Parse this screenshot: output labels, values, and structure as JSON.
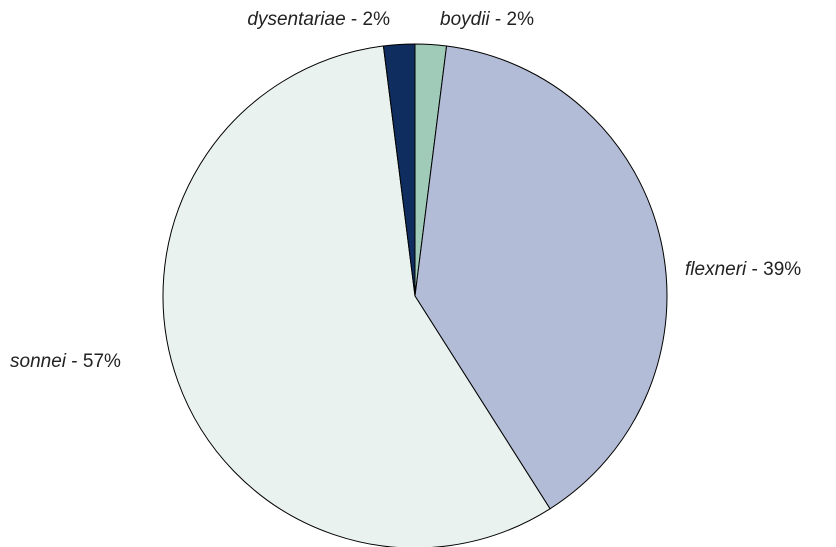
{
  "chart_data": {
    "type": "pie",
    "categories": [
      "boydii",
      "flexneri",
      "sonnei",
      "dysentariae"
    ],
    "values": [
      2,
      39,
      57,
      2
    ],
    "value_labels": [
      "2%",
      "39%",
      "57%",
      "2%"
    ],
    "separator": " - ",
    "colors": [
      "#9fcbb8",
      "#b3bcd6",
      "#e9f2ef",
      "#0f2d5e"
    ]
  }
}
